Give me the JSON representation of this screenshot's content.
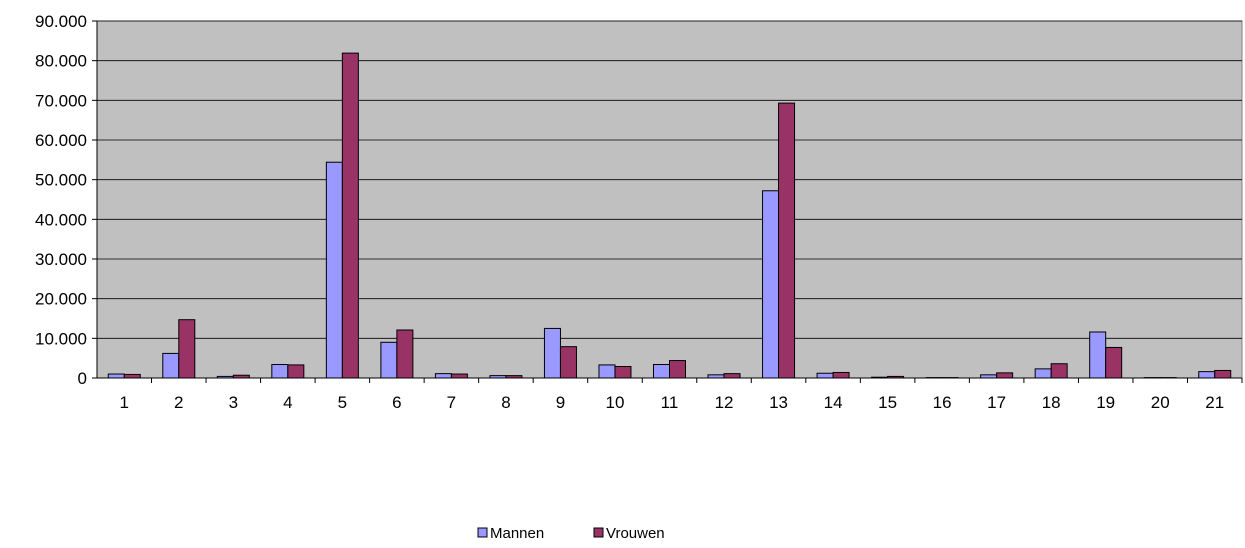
{
  "chart_data": {
    "type": "bar",
    "title": "",
    "xlabel": "",
    "ylabel": "",
    "categories": [
      "1",
      "2",
      "3",
      "4",
      "5",
      "6",
      "7",
      "8",
      "9",
      "10",
      "11",
      "12",
      "13",
      "14",
      "15",
      "16",
      "17",
      "18",
      "19",
      "20",
      "21"
    ],
    "series": [
      {
        "name": "Mannen",
        "color": "#9999ff",
        "values": [
          1000,
          6200,
          400,
          3400,
          54400,
          9000,
          1100,
          600,
          12500,
          3300,
          3400,
          800,
          47200,
          1200,
          200,
          100,
          800,
          2300,
          11600,
          100,
          1600
        ]
      },
      {
        "name": "Vrouwen",
        "color": "#993366",
        "values": [
          900,
          14700,
          700,
          3300,
          81900,
          12100,
          1000,
          600,
          7900,
          2900,
          4400,
          1100,
          69300,
          1400,
          400,
          100,
          1300,
          3600,
          7700,
          100,
          1900
        ]
      }
    ],
    "ylim": [
      0,
      90000
    ],
    "yticks": [
      "0",
      "10.000",
      "20.000",
      "30.000",
      "40.000",
      "50.000",
      "60.000",
      "70.000",
      "80.000",
      "90.000"
    ],
    "ytick_values": [
      0,
      10000,
      20000,
      30000,
      40000,
      50000,
      60000,
      70000,
      80000,
      90000
    ],
    "grid": true,
    "plot_background": "#c0c0c0",
    "legend_position": "bottom"
  }
}
